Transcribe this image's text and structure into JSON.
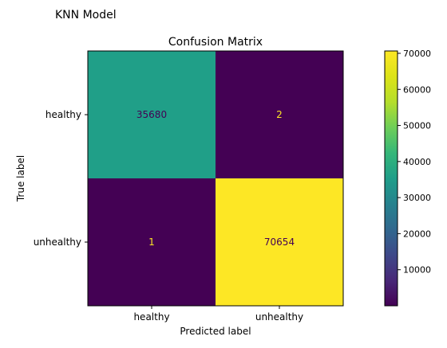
{
  "figure_title": "KNN Model",
  "chart_data": {
    "type": "heatmap",
    "title": "Confusion Matrix",
    "xlabel": "Predicted label",
    "ylabel": "True label",
    "x_categories": [
      "healthy",
      "unhealthy"
    ],
    "y_categories": [
      "healthy",
      "unhealthy"
    ],
    "values": [
      [
        35680,
        2
      ],
      [
        1,
        70654
      ]
    ],
    "cell_text_colors": [
      [
        "#440154",
        "#fde725"
      ],
      [
        "#fde725",
        "#440154"
      ]
    ],
    "colormap": "viridis",
    "colorbar": {
      "vmin": 1,
      "vmax": 70654,
      "ticks": [
        10000,
        20000,
        30000,
        40000,
        50000,
        60000,
        70000
      ],
      "tick_labels": [
        "10000",
        "20000",
        "30000",
        "40000",
        "50000",
        "60000",
        "70000"
      ]
    },
    "grid": false
  }
}
